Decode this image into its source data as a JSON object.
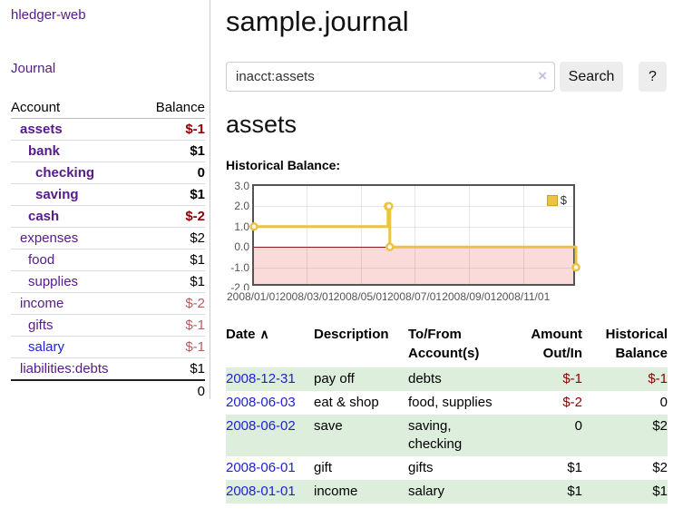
{
  "app": {
    "brand": "hledger-web"
  },
  "nav": {
    "journal": "Journal"
  },
  "sidebar": {
    "headers": {
      "account": "Account",
      "balance": "Balance"
    },
    "accounts": [
      {
        "name": "assets",
        "balance": "$-1",
        "indent": 1,
        "bold": true,
        "balance_color": "negative-strong"
      },
      {
        "name": "bank",
        "balance": "$1",
        "indent": 2,
        "bold": true,
        "balance_color": "normal"
      },
      {
        "name": "checking",
        "balance": "0",
        "indent": 3,
        "bold": true,
        "balance_color": "normal"
      },
      {
        "name": "saving",
        "balance": "$1",
        "indent": 3,
        "bold": true,
        "balance_color": "normal"
      },
      {
        "name": "cash",
        "balance": "$-2",
        "indent": 2,
        "bold": true,
        "balance_color": "negative-strong"
      },
      {
        "name": "expenses",
        "balance": "$2",
        "indent": 1,
        "bold": false,
        "balance_color": "normal"
      },
      {
        "name": "food",
        "balance": "$1",
        "indent": 2,
        "bold": false,
        "balance_color": "normal"
      },
      {
        "name": "supplies",
        "balance": "$1",
        "indent": 2,
        "bold": false,
        "balance_color": "normal"
      },
      {
        "name": "income",
        "balance": "$-2",
        "indent": 1,
        "bold": false,
        "balance_color": "negative-soft"
      },
      {
        "name": "gifts",
        "balance": "$-1",
        "indent": 2,
        "bold": false,
        "balance_color": "negative-soft"
      },
      {
        "name": "salary",
        "balance": "$-1",
        "indent": 2,
        "bold": false,
        "balance_color": "negative-soft",
        "link_color": "blue"
      },
      {
        "name": "liabilities:debts",
        "balance": "$1",
        "indent": 1,
        "bold": false,
        "balance_color": "normal"
      }
    ],
    "total": "0"
  },
  "main": {
    "title": "sample.journal",
    "account_title": "assets",
    "chart_label": "Historical Balance:"
  },
  "search": {
    "value": "inacct:assets",
    "clear_icon": "×",
    "search_button": "Search",
    "help_button": "?"
  },
  "chart_data": {
    "type": "line",
    "style": "step",
    "title": "",
    "series": [
      {
        "name": "$",
        "color": "#edc240",
        "points": [
          [
            "2008-01-01",
            1
          ],
          [
            "2008-06-01",
            2
          ],
          [
            "2008-06-02",
            2
          ],
          [
            "2008-06-03",
            0
          ],
          [
            "2008-12-31",
            -1
          ]
        ]
      }
    ],
    "ylim": [
      -2.0,
      3.0
    ],
    "yticks": [
      "3.0",
      "2.0",
      "1.0",
      "0.0",
      "-1.0",
      "-2.0"
    ],
    "xticks": [
      "2008/01/01",
      "2008/03/01",
      "2008/05/01",
      "2008/07/01",
      "2008/09/01",
      "2008/11/01"
    ],
    "xrange": [
      "2008-01-01",
      "2009-01-01"
    ],
    "legend": {
      "position": "top-right",
      "entries": [
        "$"
      ]
    },
    "grid": true,
    "negative_region_shaded": true
  },
  "register": {
    "headers": {
      "date": "Date",
      "sort_icon": "∧",
      "description": "Description",
      "accounts": "To/From\nAccount(s)",
      "amount": "Amount\nOut/In",
      "balance": "Historical\nBalance"
    },
    "rows": [
      {
        "date": "2008-12-31",
        "description": "pay off",
        "accounts": "debts",
        "amount": "$-1",
        "amount_negative": true,
        "balance": "$-1",
        "balance_negative": true,
        "shaded": true
      },
      {
        "date": "2008-06-03",
        "description": "eat & shop",
        "accounts": "food, supplies",
        "amount": "$-2",
        "amount_negative": true,
        "balance": "0",
        "balance_negative": false,
        "shaded": false
      },
      {
        "date": "2008-06-02",
        "description": "save",
        "accounts": "saving,\nchecking",
        "amount": "0",
        "amount_negative": false,
        "balance": "$2",
        "balance_negative": false,
        "shaded": true
      },
      {
        "date": "2008-06-01",
        "description": "gift",
        "accounts": "gifts",
        "amount": "$1",
        "amount_negative": false,
        "balance": "$2",
        "balance_negative": false,
        "shaded": false
      },
      {
        "date": "2008-01-01",
        "description": "income",
        "accounts": "salary",
        "amount": "$1",
        "amount_negative": false,
        "balance": "$1",
        "balance_negative": false,
        "shaded": true
      }
    ]
  },
  "colors": {
    "link_purple": "#551a8b",
    "link_blue": "#2222cc",
    "negative_strong": "#8b0000",
    "negative_soft": "#b26060",
    "row_green": "#ddeedd",
    "chart_line": "#edc240",
    "chart_negative_bg": "#fbdada",
    "chart_zero_line": "#8b1a1a",
    "button_bg": "#ededed"
  }
}
